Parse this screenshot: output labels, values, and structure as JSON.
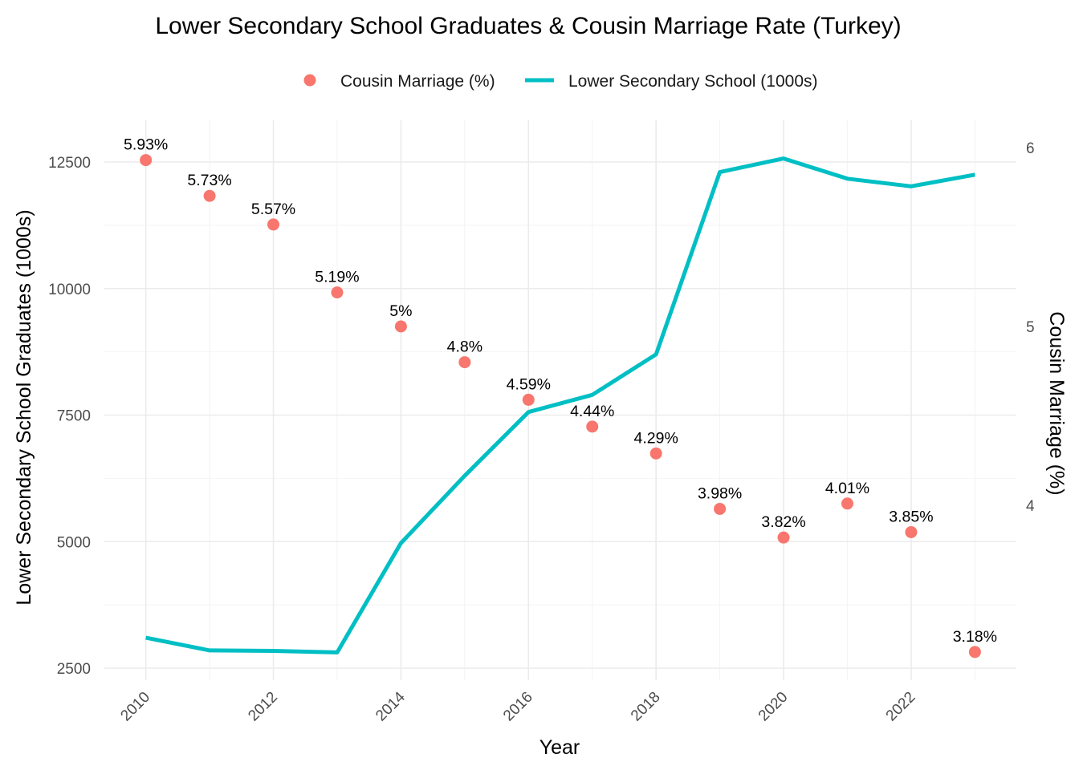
{
  "chart_data": {
    "type": "line",
    "title": "Lower Secondary School Graduates & Cousin Marriage Rate (Turkey)",
    "xlabel": "Year",
    "ylabel_left": "Lower Secondary School Graduates (1000s)",
    "ylabel_right": "Cousin Marriage (%)",
    "x": [
      2010,
      2011,
      2012,
      2013,
      2014,
      2015,
      2016,
      2017,
      2018,
      2019,
      2020,
      2021,
      2022,
      2023
    ],
    "x_ticks": [
      2010,
      2012,
      2014,
      2016,
      2018,
      2020,
      2022
    ],
    "y_left_ticks": [
      2500,
      5000,
      7500,
      10000,
      12500
    ],
    "y_left_range": [
      2500,
      12500
    ],
    "y_right_ticks": [
      4,
      5,
      6
    ],
    "legend_position": "top",
    "grid": true,
    "series": [
      {
        "name": "Cousin Marriage (%)",
        "kind": "scatter",
        "axis": "right",
        "color": "#F8766D",
        "values": [
          5.93,
          5.73,
          5.57,
          5.19,
          5.0,
          4.8,
          4.59,
          4.44,
          4.29,
          3.98,
          3.82,
          4.01,
          3.85,
          3.18
        ],
        "labels": [
          "5.93%",
          "5.73%",
          "5.57%",
          "5.19%",
          "5%",
          "4.8%",
          "4.59%",
          "4.44%",
          "4.29%",
          "3.98%",
          "3.82%",
          "4.01%",
          "3.85%",
          "3.18%"
        ]
      },
      {
        "name": "Lower Secondary School (1000s)",
        "kind": "line",
        "axis": "left",
        "color": "#00BFC4",
        "values": [
          3100,
          2850,
          2840,
          2810,
          4970,
          6300,
          7560,
          7900,
          8700,
          12300,
          12570,
          12170,
          12020,
          12250
        ]
      }
    ]
  }
}
